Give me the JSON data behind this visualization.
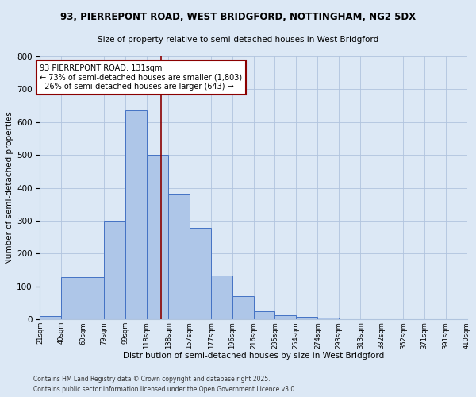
{
  "title1": "93, PIERREPONT ROAD, WEST BRIDGFORD, NOTTINGHAM, NG2 5DX",
  "title2": "Size of property relative to semi-detached houses in West Bridgford",
  "xlabel": "Distribution of semi-detached houses by size in West Bridgford",
  "ylabel": "Number of semi-detached properties",
  "bin_edges": [
    21,
    40,
    60,
    79,
    99,
    118,
    138,
    157,
    177,
    196,
    216,
    235,
    254,
    274,
    293,
    313,
    332,
    352,
    371,
    391,
    410
  ],
  "bar_heights": [
    10,
    128,
    128,
    300,
    635,
    500,
    383,
    278,
    133,
    70,
    25,
    13,
    8,
    5,
    0,
    0,
    0,
    0,
    0,
    0
  ],
  "bar_color": "#aec6e8",
  "bar_edgecolor": "#4472c4",
  "vline_x": 131,
  "vline_color": "#8b0000",
  "annotation_text": "93 PIERREPONT ROAD: 131sqm\n← 73% of semi-detached houses are smaller (1,803)\n  26% of semi-detached houses are larger (643) →",
  "annotation_box_edgecolor": "#8b0000",
  "annotation_box_facecolor": "#ffffff",
  "ylim": [
    0,
    800
  ],
  "yticks": [
    0,
    100,
    200,
    300,
    400,
    500,
    600,
    700,
    800
  ],
  "grid_color": "#b0c4de",
  "bg_color": "#dce8f5",
  "fig_bg_color": "#dce8f5",
  "footnote1": "Contains HM Land Registry data © Crown copyright and database right 2025.",
  "footnote2": "Contains public sector information licensed under the Open Government Licence v3.0."
}
